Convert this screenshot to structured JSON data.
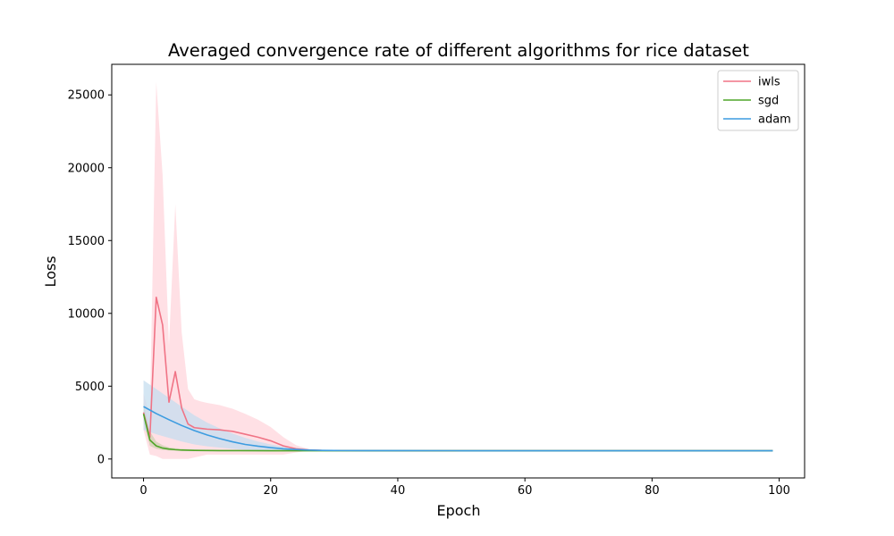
{
  "chart_data": {
    "type": "line",
    "title": "Averaged convergence rate of different algorithms for rice dataset",
    "xlabel": "Epoch",
    "ylabel": "Loss",
    "xlim": [
      -5,
      104
    ],
    "ylim": [
      -1300,
      27100
    ],
    "xticks": [
      0,
      20,
      40,
      60,
      80,
      100
    ],
    "yticks": [
      0,
      5000,
      10000,
      15000,
      20000,
      25000
    ],
    "grid": false,
    "legend_position": "top-right",
    "series": [
      {
        "name": "iwls",
        "color": "#f07385",
        "band_color": "#ffd6dc",
        "x": [
          0,
          1,
          2,
          3,
          4,
          5,
          6,
          7,
          8,
          9,
          10,
          12,
          14,
          16,
          18,
          20,
          22,
          24,
          26,
          28,
          30,
          35,
          40,
          50,
          60,
          70,
          80,
          90,
          99
        ],
        "values": [
          3200,
          1500,
          11100,
          9200,
          3900,
          6000,
          3500,
          2400,
          2150,
          2100,
          2050,
          2000,
          1900,
          1700,
          1500,
          1250,
          900,
          700,
          620,
          590,
          580,
          575,
          570,
          570,
          570,
          570,
          570,
          570,
          570
        ],
        "lower": [
          2000,
          300,
          200,
          0,
          0,
          0,
          0,
          0,
          100,
          200,
          300,
          300,
          300,
          300,
          300,
          300,
          300,
          450,
          560,
          575,
          578,
          573,
          568,
          568,
          568,
          568,
          568,
          568,
          568
        ],
        "upper": [
          4500,
          3000,
          25900,
          19500,
          7800,
          17500,
          8700,
          4800,
          4100,
          3950,
          3850,
          3700,
          3450,
          3100,
          2700,
          2200,
          1500,
          950,
          680,
          610,
          585,
          578,
          572,
          572,
          572,
          572,
          572,
          572,
          572
        ]
      },
      {
        "name": "sgd",
        "color": "#4fa528",
        "x": [
          0,
          1,
          2,
          3,
          4,
          5,
          6,
          8,
          10,
          12,
          15,
          20,
          25,
          30,
          40,
          50,
          60,
          70,
          80,
          90,
          99
        ],
        "values": [
          3100,
          1300,
          900,
          750,
          680,
          640,
          610,
          590,
          580,
          575,
          572,
          570,
          570,
          570,
          570,
          570,
          570,
          570,
          570,
          570,
          570
        ],
        "lower": [
          2500,
          900,
          700,
          620,
          590,
          575,
          565,
          560,
          558,
          556,
          555,
          555,
          556,
          558,
          560,
          565,
          566,
          566,
          566,
          566,
          566
        ],
        "upper": [
          3900,
          1900,
          1200,
          950,
          800,
          740,
          700,
          650,
          620,
          600,
          590,
          585,
          582,
          580,
          578,
          575,
          574,
          574,
          574,
          574,
          574
        ]
      },
      {
        "name": "adam",
        "color": "#3c9ce0",
        "band_color": "#c6deef",
        "x": [
          0,
          2,
          4,
          6,
          8,
          10,
          12,
          14,
          16,
          18,
          20,
          22,
          24,
          26,
          28,
          30,
          35,
          40,
          50,
          60,
          70,
          80,
          90,
          99
        ],
        "values": [
          3600,
          3120,
          2700,
          2300,
          1950,
          1650,
          1400,
          1180,
          1000,
          880,
          780,
          700,
          650,
          610,
          590,
          580,
          575,
          572,
          570,
          570,
          570,
          570,
          570,
          570
        ],
        "lower": [
          2000,
          1700,
          1450,
          1200,
          1000,
          870,
          780,
          700,
          640,
          600,
          580,
          570,
          565,
          562,
          562,
          563,
          565,
          566,
          566,
          566,
          566,
          566,
          566,
          566
        ],
        "upper": [
          5400,
          4800,
          4200,
          3600,
          3000,
          2500,
          2100,
          1750,
          1450,
          1200,
          1000,
          850,
          760,
          680,
          630,
          600,
          585,
          578,
          574,
          574,
          574,
          574,
          574,
          574
        ]
      }
    ]
  }
}
